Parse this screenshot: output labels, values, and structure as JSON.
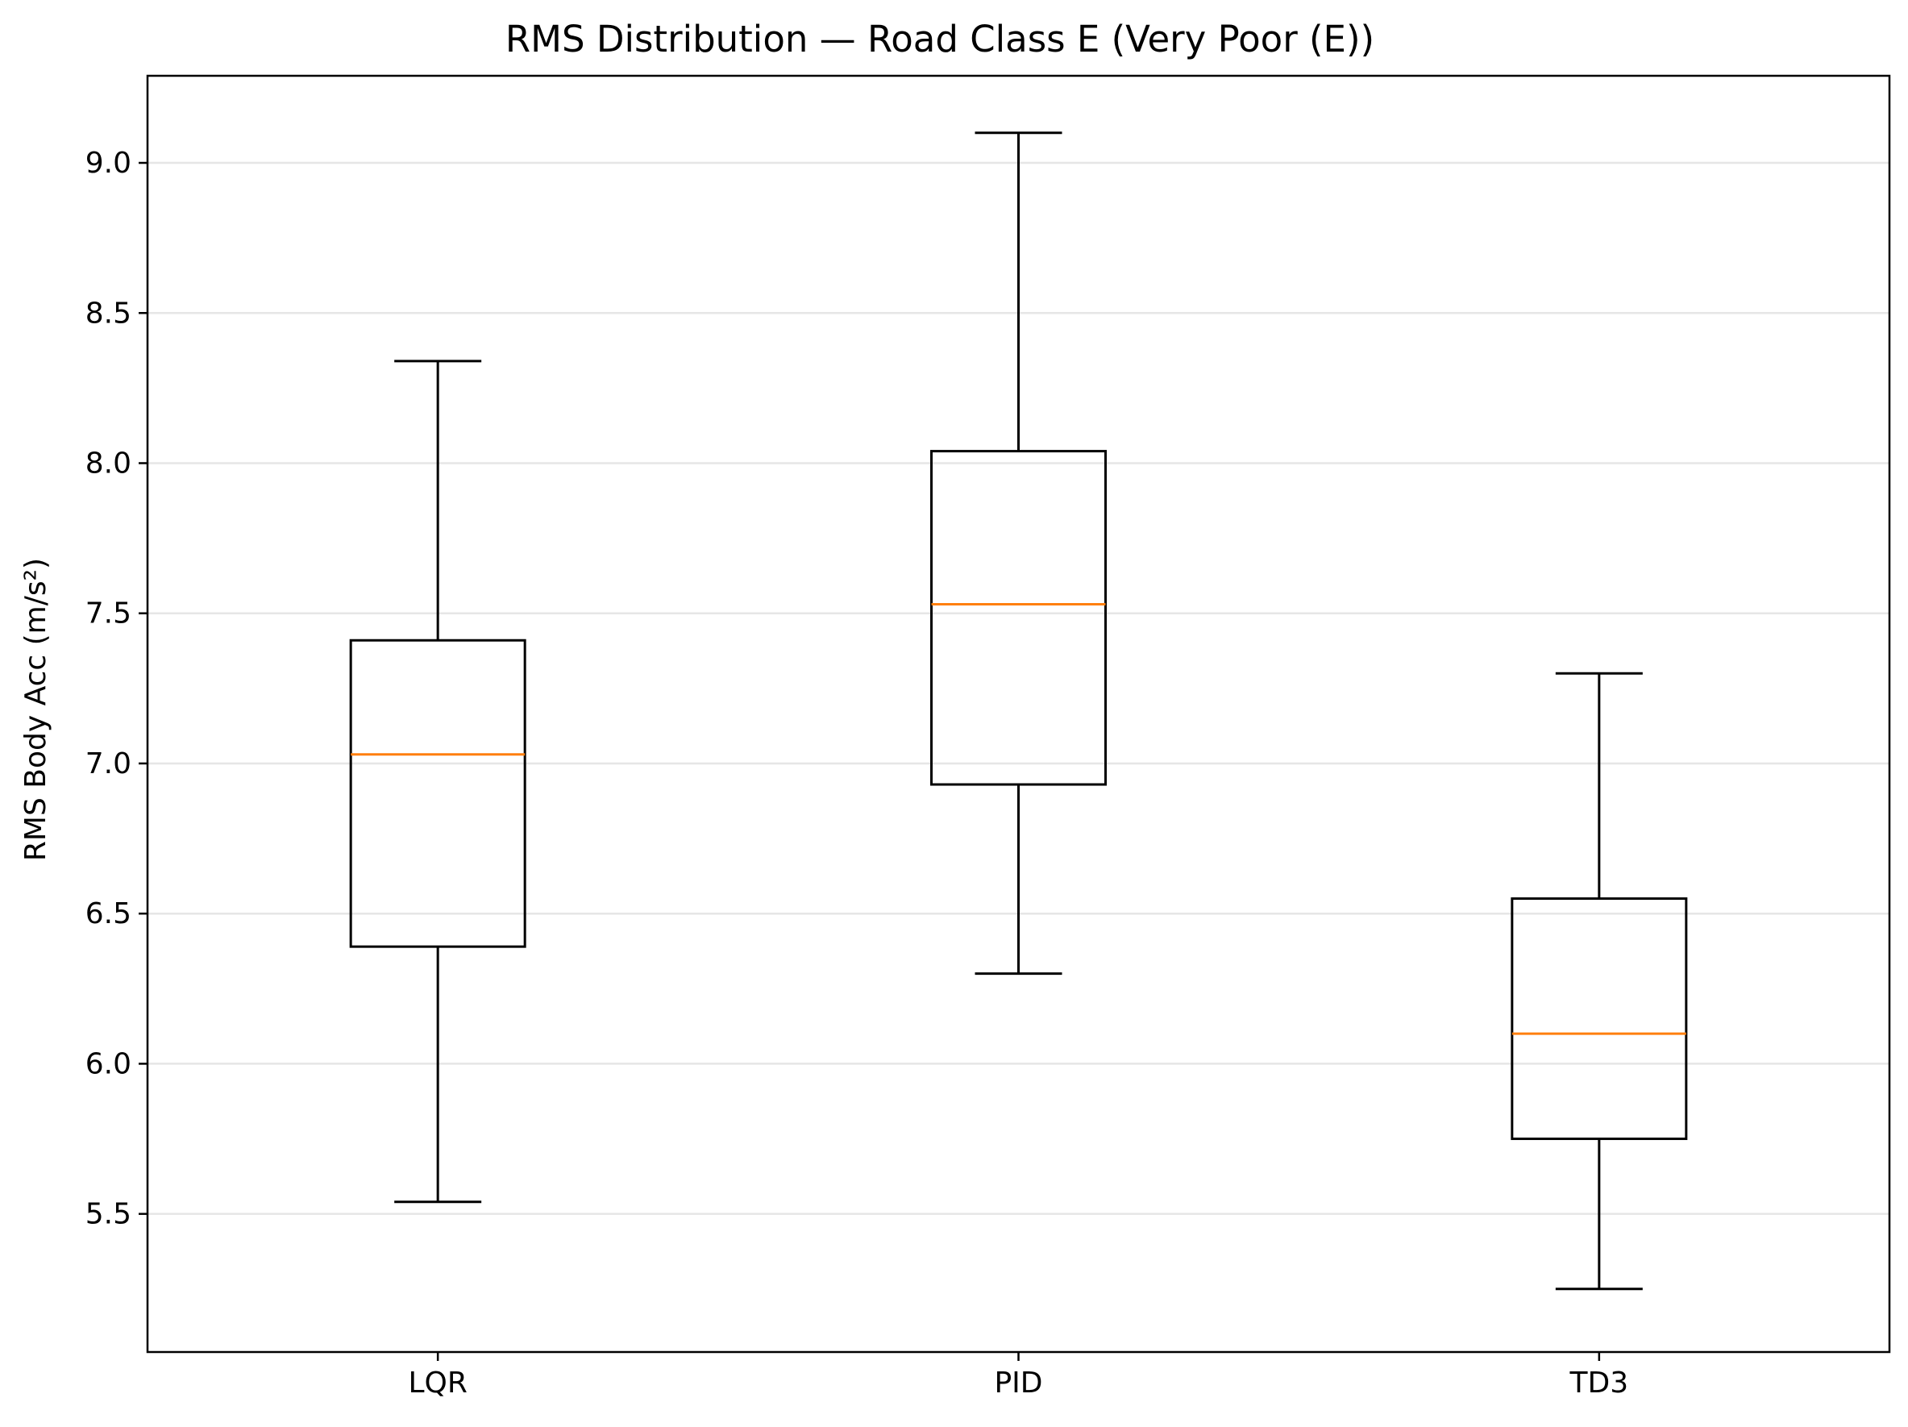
{
  "chart_data": {
    "type": "box",
    "title": "RMS Distribution — Road Class E (Very Poor (E))",
    "xlabel": "",
    "ylabel": "RMS Body Acc (m/s²)",
    "ylim": [
      5.04,
      9.29
    ],
    "yticks": [
      5.5,
      6.0,
      6.5,
      7.0,
      7.5,
      8.0,
      8.5,
      9.0
    ],
    "ytick_labels": [
      "5.5",
      "6.0",
      "6.5",
      "7.0",
      "7.5",
      "8.0",
      "8.5",
      "9.0"
    ],
    "grid": "y",
    "categories": [
      "LQR",
      "PID",
      "TD3"
    ],
    "boxes": [
      {
        "label": "LQR",
        "whisker_low": 5.54,
        "q1": 6.39,
        "median": 7.03,
        "q3": 7.41,
        "whisker_high": 8.34
      },
      {
        "label": "PID",
        "whisker_low": 6.3,
        "q1": 6.93,
        "median": 7.53,
        "q3": 8.04,
        "whisker_high": 9.1
      },
      {
        "label": "TD3",
        "whisker_low": 5.25,
        "q1": 5.75,
        "median": 6.1,
        "q3": 6.55,
        "whisker_high": 7.3
      }
    ],
    "colors": {
      "box": "#000000",
      "median": "#ff7f0e",
      "grid": "#e6e6e6"
    }
  }
}
